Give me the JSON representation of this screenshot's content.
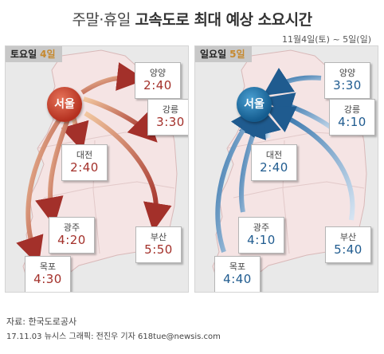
{
  "title": {
    "prefix": "주말·휴일",
    "main": "고속도로 최대 예상 소요시간"
  },
  "date_range": "11월4일(토) ~ 5일(일)",
  "panels": {
    "saturday": {
      "day_label": "토요일",
      "day_num": "4일",
      "hub": "서울",
      "routes": [
        {
          "city": "양양",
          "time": "2:40"
        },
        {
          "city": "강릉",
          "time": "3:30"
        },
        {
          "city": "대전",
          "time": "2:40"
        },
        {
          "city": "광주",
          "time": "4:20"
        },
        {
          "city": "부산",
          "time": "5:50"
        },
        {
          "city": "목포",
          "time": "4:30"
        }
      ]
    },
    "sunday": {
      "day_label": "일요일",
      "day_num": "5일",
      "hub": "서울",
      "routes": [
        {
          "city": "양양",
          "time": "3:30"
        },
        {
          "city": "강릉",
          "time": "4:10"
        },
        {
          "city": "대전",
          "time": "2:40"
        },
        {
          "city": "광주",
          "time": "4:10"
        },
        {
          "city": "부산",
          "time": "5:40"
        },
        {
          "city": "목포",
          "time": "4:40"
        }
      ]
    }
  },
  "source": "자료: 한국도로공사",
  "credit": "17.11.03 뉴시스 그래픽: 전진우 기자 618tue@newsis.com",
  "colors": {
    "saturday_arrow": "#a3302a",
    "sunday_arrow": "#2d6fa8",
    "map_fill": "#f5e4e4"
  }
}
